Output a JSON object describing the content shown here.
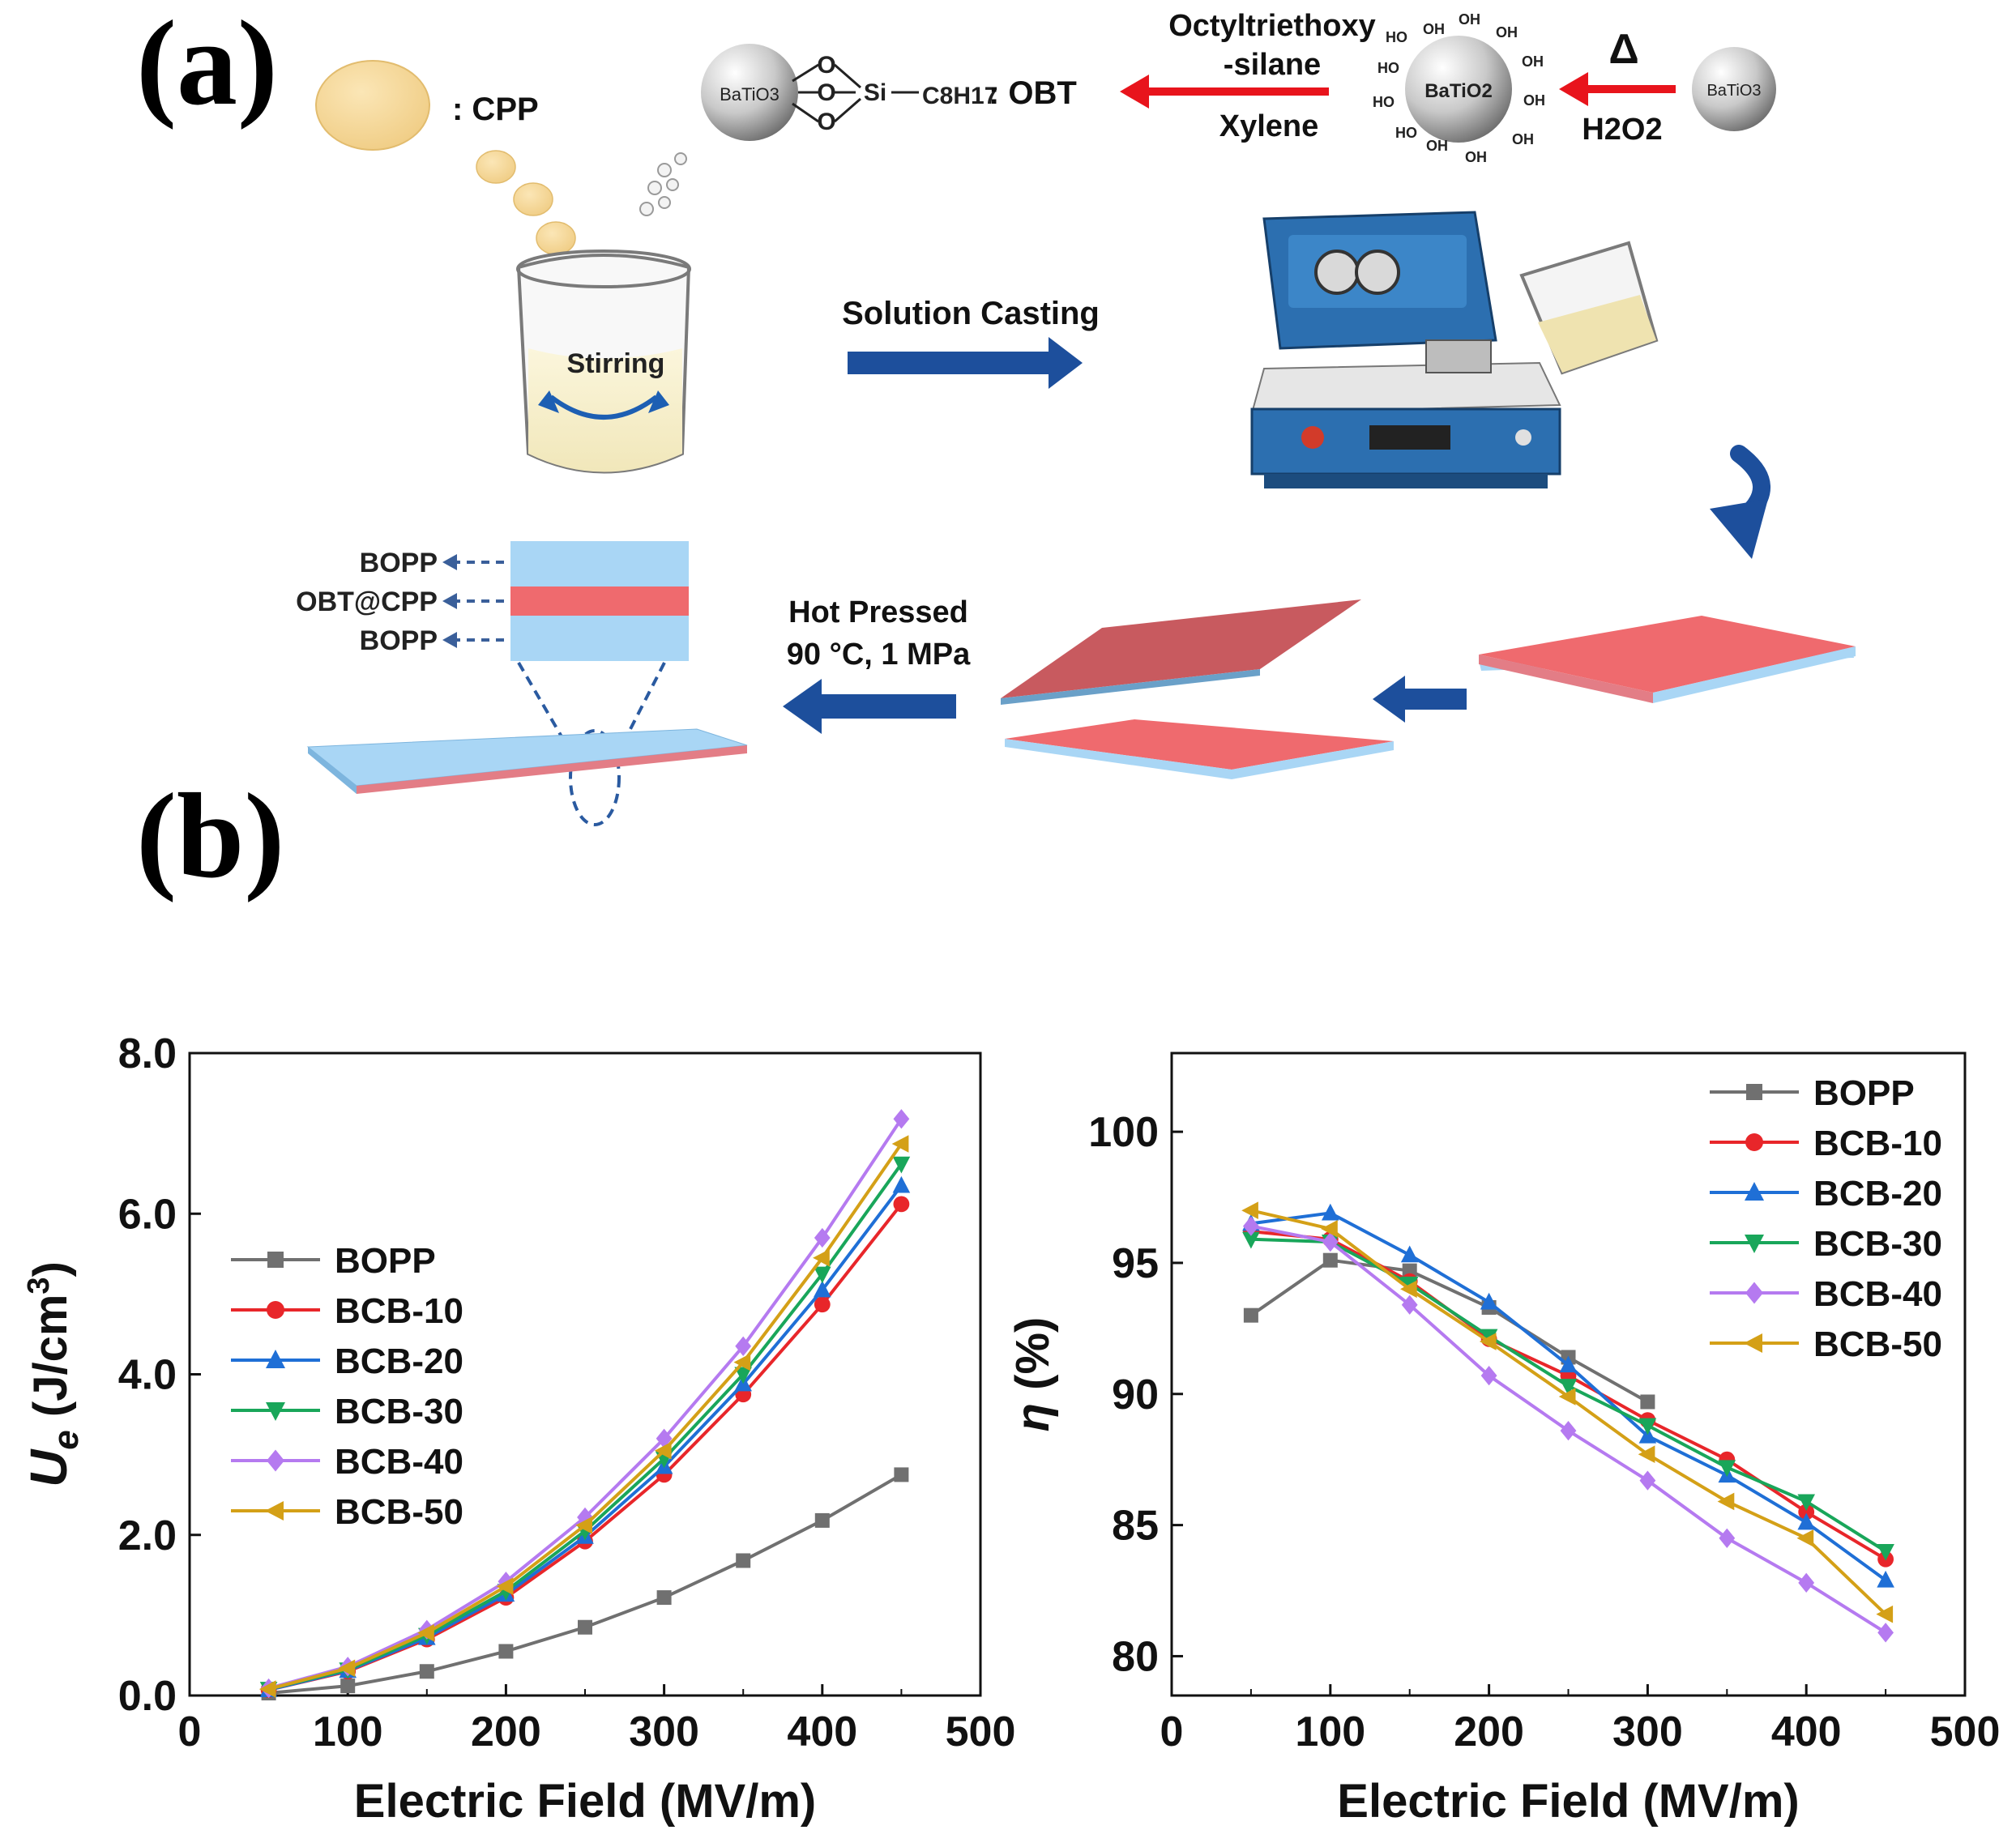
{
  "panel_a": {
    "letter": "(a)",
    "cpp_label": ": CPP",
    "obt_label": ": OBT",
    "obt_formula": {
      "core": "BaTiO3",
      "si": "Si",
      "chain": "C8H17"
    },
    "reaction1_top1": "Octyltriethoxy",
    "reaction1_top2": "-silane",
    "reaction1_bottom": "Xylene",
    "hydroxylated_core": "BaTiO2",
    "oh": "OH",
    "ho": "HO",
    "delta": "Δ",
    "reaction2_bottom": "H2O2",
    "batio3": "BaTiO3",
    "stirring": "Stirring",
    "solution_casting": "Solution Casting",
    "layer_top": "BOPP",
    "layer_mid": "OBT@CPP",
    "layer_bottom": "BOPP",
    "hot_pressed_1": "Hot Pressed",
    "hot_pressed_2": "90 °C, 1 MPa"
  },
  "panel_b": {
    "letter": "(b)"
  },
  "chart_data": [
    {
      "type": "line",
      "xlabel": "Electric Field (MV/m)",
      "ylabel": "Ue (J/cm3)",
      "xlim": [
        0,
        500
      ],
      "ylim": [
        0,
        8
      ],
      "xticks": [
        "0",
        "100",
        "200",
        "300",
        "400",
        "500"
      ],
      "yticks": [
        "0.0",
        "2.0",
        "4.0",
        "6.0",
        "8.0"
      ],
      "legend": "center-left",
      "x": [
        50,
        100,
        150,
        200,
        250,
        300,
        350,
        400,
        450
      ],
      "series": [
        {
          "name": "BOPP",
          "color": "#707070",
          "marker": "square",
          "values": [
            0.03,
            0.12,
            0.3,
            0.55,
            0.85,
            1.22,
            1.68,
            2.18,
            2.75
          ]
        },
        {
          "name": "BCB-10",
          "color": "#e8262a",
          "marker": "circle",
          "values": [
            0.07,
            0.3,
            0.7,
            1.22,
            1.92,
            2.75,
            3.75,
            4.87,
            6.12
          ]
        },
        {
          "name": "BCB-20",
          "color": "#1f6fd6",
          "marker": "triangle-up",
          "values": [
            0.07,
            0.31,
            0.72,
            1.26,
            1.98,
            2.85,
            3.88,
            5.05,
            6.35
          ]
        },
        {
          "name": "BCB-30",
          "color": "#19a65a",
          "marker": "triangle-down",
          "values": [
            0.08,
            0.32,
            0.75,
            1.3,
            2.05,
            2.95,
            4.0,
            5.25,
            6.62
          ]
        },
        {
          "name": "BCB-40",
          "color": "#b57af0",
          "marker": "diamond",
          "values": [
            0.09,
            0.36,
            0.82,
            1.42,
            2.22,
            3.2,
            4.35,
            5.7,
            7.18
          ]
        },
        {
          "name": "BCB-50",
          "color": "#d4a017",
          "marker": "triangle-left",
          "values": [
            0.08,
            0.34,
            0.78,
            1.36,
            2.12,
            3.05,
            4.15,
            5.45,
            6.87
          ]
        }
      ]
    },
    {
      "type": "line",
      "xlabel": "Electric Field (MV/m)",
      "ylabel": "η (%)",
      "xlim": [
        0,
        500
      ],
      "ylim": [
        78.5,
        103
      ],
      "xticks": [
        "0",
        "100",
        "200",
        "300",
        "400",
        "500"
      ],
      "yticks": [
        "80",
        "85",
        "90",
        "95",
        "100"
      ],
      "legend": "top-right",
      "x": [
        50,
        100,
        150,
        200,
        250,
        300,
        350,
        400,
        450
      ],
      "series": [
        {
          "name": "BOPP",
          "color": "#707070",
          "marker": "square",
          "values": [
            93.0,
            95.1,
            94.7,
            93.3,
            91.4,
            89.7,
            null,
            null,
            null
          ]
        },
        {
          "name": "BCB-10",
          "color": "#e8262a",
          "marker": "circle",
          "values": [
            96.2,
            95.9,
            94.3,
            92.1,
            90.7,
            89.0,
            87.5,
            85.5,
            83.7
          ]
        },
        {
          "name": "BCB-20",
          "color": "#1f6fd6",
          "marker": "triangle-up",
          "values": [
            96.5,
            96.9,
            95.3,
            93.5,
            91.1,
            88.4,
            86.9,
            85.1,
            82.9
          ]
        },
        {
          "name": "BCB-30",
          "color": "#19a65a",
          "marker": "triangle-down",
          "values": [
            95.9,
            95.8,
            94.2,
            92.2,
            90.3,
            88.8,
            87.2,
            85.9,
            84.0
          ]
        },
        {
          "name": "BCB-40",
          "color": "#b57af0",
          "marker": "diamond",
          "values": [
            96.4,
            95.8,
            93.4,
            90.7,
            88.6,
            86.7,
            84.5,
            82.8,
            80.9
          ]
        },
        {
          "name": "BCB-50",
          "color": "#d4a017",
          "marker": "triangle-left",
          "values": [
            97.0,
            96.3,
            94.0,
            92.0,
            89.9,
            87.7,
            85.9,
            84.5,
            81.6
          ]
        }
      ]
    }
  ]
}
